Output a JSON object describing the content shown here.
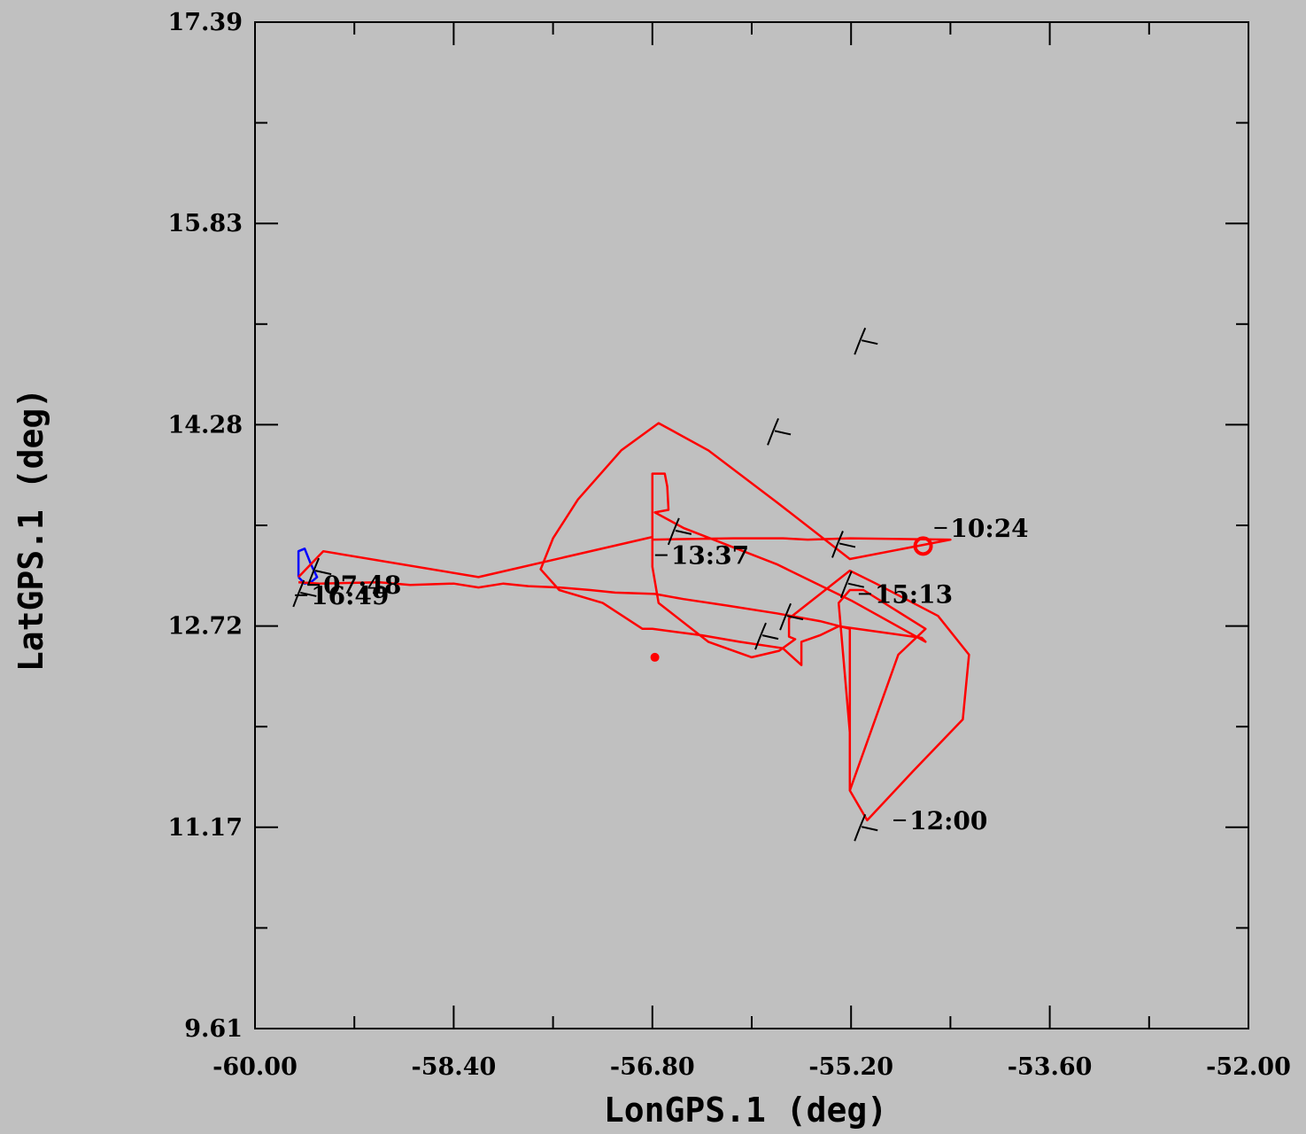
{
  "chart_data": {
    "type": "line",
    "xlabel": "LonGPS.1 (deg)",
    "ylabel": "LatGPS.1 (deg)",
    "xlim": [
      -60.0,
      -52.0
    ],
    "ylim": [
      9.61,
      17.39
    ],
    "x_ticks": [
      "-60.00",
      "-58.40",
      "-56.80",
      "-55.20",
      "-53.60",
      "-52.00"
    ],
    "y_ticks": [
      "17.39",
      "15.83",
      "14.28",
      "12.72",
      "11.17",
      "9.61"
    ],
    "grid": false,
    "colors": {
      "background": "#c0c0c0",
      "main_track": "#ff0000",
      "start_track": "#0000ff",
      "wind_barb": "#000000"
    },
    "series": [
      {
        "color": "#0000ff",
        "x": [
          -59.65,
          -59.65,
          -59.6,
          -59.55,
          -59.5,
          -59.55,
          -59.6,
          -59.65
        ],
        "y": [
          13.1,
          13.3,
          13.32,
          13.2,
          13.1,
          13.06,
          13.05,
          13.1
        ]
      },
      {
        "color": "#ff0000",
        "x": [
          -59.65,
          -59.48,
          -59.0,
          -58.75,
          -58.4,
          -58.2,
          -58.0,
          -57.8,
          -57.55,
          -57.3,
          -57.1,
          -56.78,
          -56.55,
          -56.2,
          -55.8,
          -55.45,
          -55.21,
          -55.21,
          -54.82,
          -54.6,
          -55.1,
          -55.21,
          -55.3,
          -55.21,
          -55.21,
          -55.07,
          -54.7,
          -54.3,
          -54.25,
          -54.5,
          -55.0,
          -55.21,
          -55.7,
          -55.7,
          -55.65,
          -55.78,
          -56.0,
          -56.35,
          -56.75,
          -56.8,
          -56.8,
          -56.7,
          -56.68,
          -56.67,
          -56.78,
          -56.78,
          -56.55,
          -55.8,
          -55.2,
          -54.6,
          -54.63,
          -55.3,
          -55.45,
          -55.6,
          -55.6,
          -55.75,
          -56.1,
          -56.4,
          -56.8,
          -56.88,
          -57.2,
          -57.55,
          -57.7,
          -57.6,
          -57.4,
          -57.05,
          -56.75,
          -56.35,
          -55.8,
          -55.21,
          -54.4,
          -55.21,
          -55.55,
          -55.75,
          -56.15,
          -56.8,
          -56.8,
          -58.2,
          -59.45,
          -59.65
        ],
        "y": [
          13.06,
          13.05,
          13.06,
          13.04,
          13.05,
          13.02,
          13.05,
          13.03,
          13.02,
          13.0,
          12.98,
          12.97,
          12.93,
          12.88,
          12.82,
          12.76,
          12.7,
          11.45,
          12.5,
          12.7,
          13.0,
          13.0,
          12.9,
          11.9,
          11.45,
          11.22,
          11.6,
          12.0,
          12.5,
          12.8,
          13.05,
          13.15,
          12.78,
          12.64,
          12.62,
          12.53,
          12.48,
          12.6,
          12.9,
          13.18,
          13.9,
          13.9,
          13.8,
          13.62,
          13.6,
          13.6,
          13.48,
          13.2,
          12.92,
          12.6,
          12.63,
          12.72,
          12.65,
          12.6,
          12.42,
          12.55,
          12.6,
          12.65,
          12.7,
          12.7,
          12.9,
          13.0,
          13.16,
          13.4,
          13.7,
          14.08,
          14.29,
          14.08,
          13.68,
          13.24,
          13.39,
          13.4,
          13.39,
          13.4,
          13.4,
          13.39,
          13.41,
          13.1,
          13.3,
          13.1
        ]
      }
    ],
    "endpoints": {
      "start": {
        "x": -56.78,
        "y": 12.48
      },
      "finish": {
        "x": -54.62,
        "y": 13.34
      }
    },
    "annotations": [
      {
        "text": "10:24",
        "x": -54.4,
        "y": 13.48
      },
      {
        "text": "13:37",
        "x": -56.65,
        "y": 13.27
      },
      {
        "text": "15:13",
        "x": -55.01,
        "y": 12.97
      },
      {
        "text": "12:00",
        "x": -54.73,
        "y": 11.22
      },
      {
        "text": "07:48",
        "x": -59.45,
        "y": 13.04
      },
      {
        "text": "16:49",
        "x": -59.55,
        "y": 12.96
      }
    ],
    "wind_barbs": [
      {
        "x": -55.1,
        "y": 14.93
      },
      {
        "x": -55.8,
        "y": 14.23
      },
      {
        "x": -56.6,
        "y": 13.46
      },
      {
        "x": -55.28,
        "y": 13.36
      },
      {
        "x": -55.21,
        "y": 13.05
      },
      {
        "x": -55.7,
        "y": 12.8
      },
      {
        "x": -55.9,
        "y": 12.65
      },
      {
        "x": -55.1,
        "y": 11.17
      },
      {
        "x": -59.5,
        "y": 13.15
      },
      {
        "x": -59.62,
        "y": 12.98
      }
    ]
  }
}
